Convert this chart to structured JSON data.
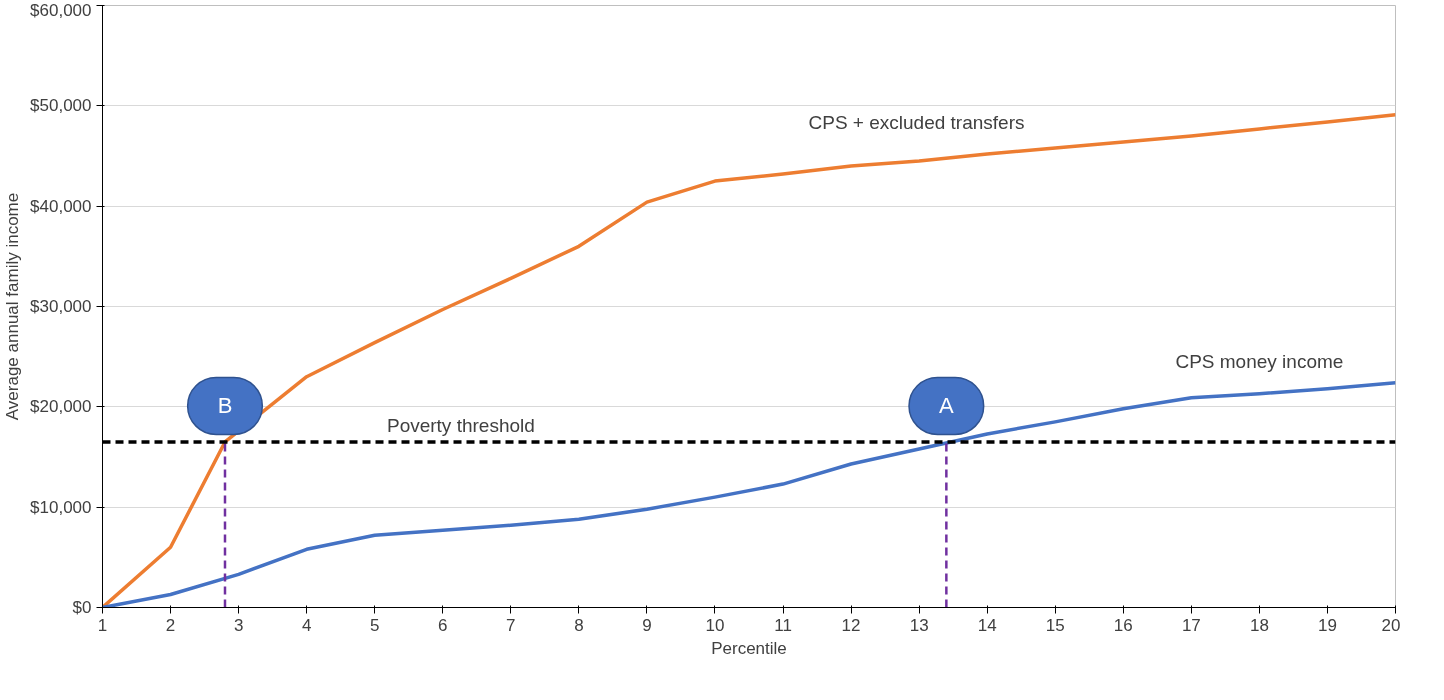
{
  "chart_data": {
    "type": "line",
    "xlabel": "Percentile",
    "ylabel": "Average annual family income",
    "x": [
      1,
      2,
      3,
      4,
      5,
      6,
      7,
      8,
      9,
      10,
      11,
      12,
      13,
      14,
      15,
      16,
      17,
      18,
      19,
      20
    ],
    "series": [
      {
        "name": "CPS  + excluded transfers",
        "color": "#ed7d31",
        "x": [
          1,
          2,
          2.8,
          4,
          5,
          6,
          7,
          8,
          9,
          10,
          11,
          12,
          13,
          14,
          15,
          16,
          17,
          18,
          19,
          20
        ],
        "values": [
          0,
          6000,
          16500,
          23000,
          26400,
          29700,
          32800,
          36000,
          40400,
          42500,
          43200,
          44000,
          44500,
          45200,
          45800,
          46400,
          47000,
          47700,
          48400,
          49100
        ]
      },
      {
        "name": "CPS money income",
        "color": "#4472c4",
        "values": [
          0,
          1300,
          3300,
          5800,
          7200,
          7700,
          8200,
          8800,
          9800,
          11000,
          12300,
          14300,
          15800,
          17300,
          18500,
          19800,
          20900,
          21300,
          21800,
          22400
        ]
      },
      {
        "color": "#7030a0",
        "line_style": "dashed",
        "x": [
          2.8,
          2.8
        ],
        "values": [
          0,
          16500
        ]
      },
      {
        "color": "#7030a0",
        "line_style": "dashed",
        "x": [
          13.4,
          13.4
        ],
        "values": [
          0,
          16500
        ]
      }
    ],
    "ref_lines": [
      {
        "axis": "y",
        "value": 16500,
        "label": "Poverty threshold",
        "color": "#000000",
        "line_style": "dashed"
      }
    ],
    "annotations": [
      "B",
      "A"
    ],
    "xlim": [
      1,
      20
    ],
    "xticks": [
      1,
      2,
      3,
      4,
      5,
      6,
      7,
      8,
      9,
      10,
      11,
      12,
      13,
      14,
      15,
      16,
      17,
      18,
      19,
      20
    ],
    "ylim": [
      0,
      60000
    ],
    "yticks": [
      {
        "value": 0,
        "label": "$0"
      },
      {
        "value": 10000,
        "label": "$10,000"
      },
      {
        "value": 20000,
        "label": "$20,000"
      },
      {
        "value": 30000,
        "label": "$30,000"
      },
      {
        "value": 40000,
        "label": "$40,000"
      },
      {
        "value": 50000,
        "label": "$50,000"
      },
      {
        "value": 60000,
        "label": "$60,000"
      }
    ],
    "grid": "y",
    "legend": false,
    "marker": "none",
    "line_style": "solid"
  }
}
